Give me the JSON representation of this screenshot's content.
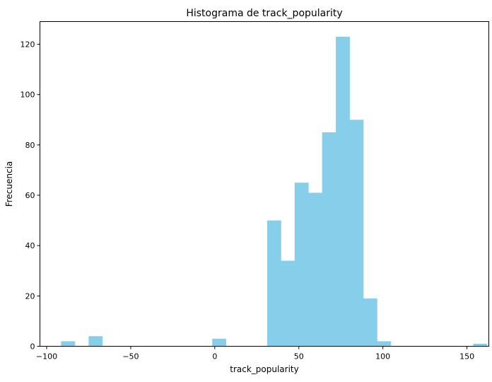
{
  "chart_data": {
    "type": "histogram",
    "title": "Histograma de track_popularity",
    "xlabel": "track_popularity",
    "ylabel": "Frecuencia",
    "xlim": [
      -104,
      163
    ],
    "ylim": [
      0,
      129
    ],
    "xticks": [
      -100,
      -50,
      0,
      50,
      100,
      150
    ],
    "yticks": [
      0,
      20,
      40,
      60,
      80,
      100,
      120
    ],
    "bin_start": -91.4,
    "bin_width": 8.17,
    "counts": [
      2,
      0,
      4,
      0,
      0,
      0,
      0,
      0,
      0,
      0,
      0,
      3,
      0,
      0,
      0,
      50,
      34,
      65,
      61,
      85,
      123,
      90,
      19,
      2,
      0,
      0,
      0,
      0,
      0,
      0,
      1
    ],
    "bar_color": "#87ceeb",
    "grid": false
  }
}
